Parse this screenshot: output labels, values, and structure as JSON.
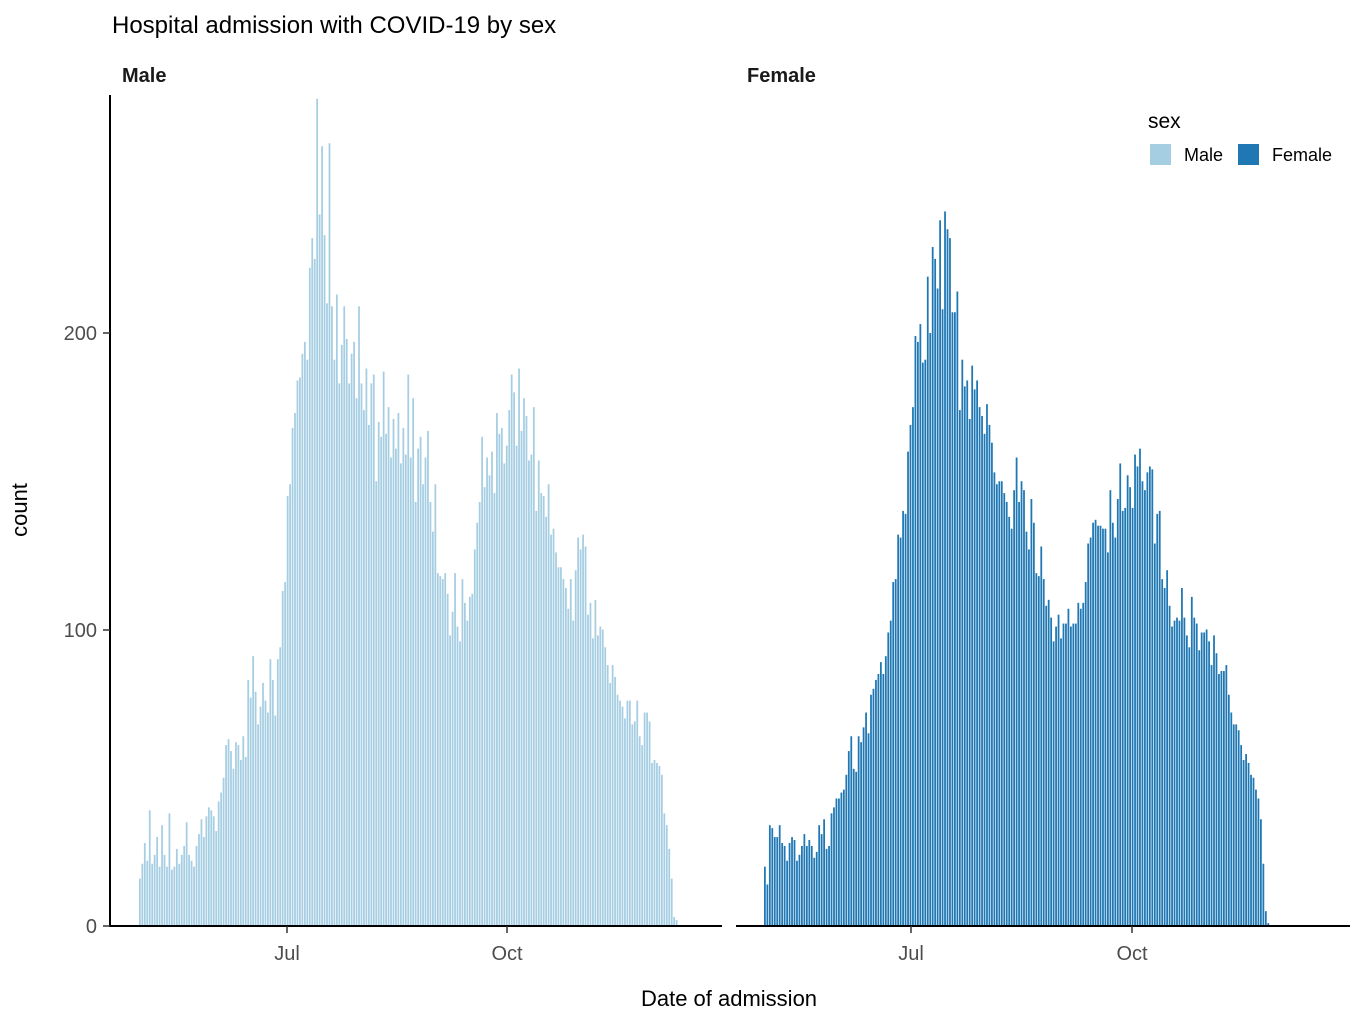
{
  "chart_data": {
    "type": "bar",
    "title": "Hospital admission with COVID-19 by sex",
    "xlabel": "Date of admission",
    "ylabel": "count",
    "x_ticks": [
      "Jul",
      "Oct"
    ],
    "y_ticks": [
      0,
      100,
      200
    ],
    "ylim": [
      0,
      280
    ],
    "grid": false,
    "legend": {
      "title": "sex",
      "position": "top-right",
      "entries": [
        "Male",
        "Female"
      ]
    },
    "panels": [
      {
        "name": "Male",
        "color": "#a6cee3",
        "values": [
          16,
          21,
          28,
          22,
          39,
          21,
          24,
          30,
          20,
          34,
          24,
          20,
          38,
          19,
          20,
          26,
          21,
          24,
          27,
          35,
          24,
          22,
          20,
          27,
          31,
          36,
          30,
          37,
          40,
          39,
          37,
          32,
          42,
          45,
          50,
          61,
          63,
          59,
          53,
          62,
          61,
          56,
          64,
          57,
          83,
          77,
          91,
          79,
          68,
          74,
          82,
          76,
          72,
          90,
          83,
          71,
          90,
          94,
          113,
          116,
          145,
          149,
          168,
          173,
          184,
          185,
          193,
          197,
          191,
          222,
          232,
          225,
          279,
          240,
          263,
          233,
          210,
          264,
          209,
          191,
          213,
          183,
          196,
          209,
          198,
          183,
          193,
          197,
          178,
          209,
          183,
          174,
          188,
          169,
          183,
          186,
          150,
          170,
          165,
          187,
          166,
          175,
          158,
          171,
          161,
          173,
          156,
          168,
          159,
          186,
          158,
          178,
          143,
          161,
          165,
          149,
          158,
          167,
          143,
          133,
          149,
          119,
          118,
          117,
          119,
          112,
          98,
          106,
          119,
          101,
          96,
          117,
          109,
          103,
          111,
          112,
          127,
          136,
          143,
          165,
          148,
          158,
          152,
          160,
          146,
          173,
          166,
          168,
          156,
          162,
          174,
          186,
          180,
          162,
          188,
          167,
          178,
          172,
          157,
          159,
          175,
          140,
          157,
          146,
          145,
          138,
          149,
          132,
          134,
          126,
          121,
          121,
          117,
          114,
          107,
          117,
          103,
          120,
          131,
          127,
          132,
          128,
          105,
          109,
          97,
          110,
          98,
          101,
          100,
          94,
          88,
          82,
          88,
          84,
          78,
          76,
          74,
          70,
          76,
          76,
          68,
          69,
          76,
          64,
          61,
          72,
          72,
          69,
          55,
          56,
          55,
          54,
          51,
          38,
          34,
          26,
          16,
          3,
          2
        ]
      },
      {
        "name": "Female",
        "color": "#1f78b4",
        "values": [
          20,
          14,
          34,
          33,
          30,
          30,
          34,
          28,
          27,
          22,
          28,
          30,
          29,
          22,
          24,
          27,
          31,
          27,
          29,
          27,
          23,
          25,
          34,
          31,
          36,
          26,
          27,
          38,
          40,
          43,
          43,
          45,
          46,
          51,
          59,
          64,
          53,
          52,
          64,
          62,
          67,
          72,
          65,
          78,
          80,
          83,
          85,
          89,
          85,
          91,
          99,
          103,
          116,
          117,
          132,
          131,
          140,
          139,
          160,
          169,
          175,
          199,
          197,
          203,
          190,
          191,
          219,
          200,
          229,
          225,
          215,
          238,
          208,
          241,
          235,
          232,
          207,
          207,
          214,
          174,
          191,
          182,
          184,
          171,
          189,
          181,
          184,
          175,
          172,
          166,
          176,
          169,
          163,
          153,
          149,
          150,
          150,
          146,
          143,
          138,
          134,
          147,
          158,
          143,
          150,
          147,
          133,
          127,
          144,
          136,
          119,
          118,
          128,
          117,
          108,
          110,
          104,
          96,
          101,
          105,
          97,
          102,
          102,
          107,
          101,
          102,
          102,
          109,
          107,
          109,
          116,
          129,
          131,
          136,
          137,
          135,
          135,
          134,
          134,
          126,
          147,
          136,
          131,
          144,
          156,
          140,
          141,
          152,
          148,
          141,
          159,
          155,
          161,
          150,
          147,
          153,
          155,
          154,
          129,
          139,
          140,
          117,
          114,
          120,
          108,
          101,
          103,
          104,
          103,
          114,
          104,
          98,
          94,
          111,
          104,
          102,
          93,
          99,
          99,
          100,
          96,
          88,
          98,
          92,
          85,
          86,
          86,
          88,
          78,
          72,
          68,
          68,
          66,
          61,
          56,
          58,
          55,
          51,
          50,
          46,
          43,
          36,
          21,
          5,
          1
        ]
      }
    ]
  }
}
